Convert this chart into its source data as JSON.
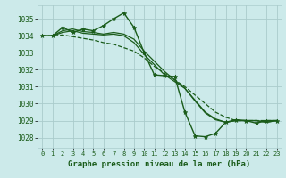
{
  "title": "Graphe pression niveau de la mer (hPa)",
  "background_color": "#cceaea",
  "grid_color": "#aacccc",
  "line_color": "#1a5c1a",
  "marker_color": "#1a5c1a",
  "xlim": [
    -0.5,
    23.5
  ],
  "ylim": [
    1027.4,
    1035.8
  ],
  "yticks": [
    1028,
    1029,
    1030,
    1031,
    1032,
    1033,
    1034,
    1035
  ],
  "xticks": [
    0,
    1,
    2,
    3,
    4,
    5,
    6,
    7,
    8,
    9,
    10,
    11,
    12,
    13,
    14,
    15,
    16,
    17,
    18,
    19,
    20,
    21,
    22,
    23
  ],
  "series": [
    {
      "x": [
        0,
        1,
        2,
        3,
        4,
        5,
        6,
        7,
        8,
        9,
        10,
        11,
        12,
        13,
        14,
        15,
        16,
        17,
        18,
        19,
        20,
        21,
        22,
        23
      ],
      "y": [
        1034.0,
        1034.0,
        1034.5,
        1034.2,
        1034.4,
        1034.3,
        1034.6,
        1035.0,
        1035.35,
        1034.5,
        1033.0,
        1031.7,
        1031.65,
        1031.6,
        1029.5,
        1028.1,
        1028.05,
        1028.25,
        1028.9,
        1029.05,
        1029.0,
        1028.85,
        1029.0,
        1029.0
      ],
      "marker": true,
      "linewidth": 1.0,
      "linestyle": "-"
    },
    {
      "x": [
        0,
        1,
        2,
        3,
        4,
        5,
        6,
        7,
        8,
        9,
        10,
        11,
        12,
        13,
        14,
        15,
        16,
        17,
        18,
        19,
        20,
        21,
        22,
        23
      ],
      "y": [
        1034.0,
        1034.0,
        1034.05,
        1033.95,
        1033.85,
        1033.75,
        1033.6,
        1033.5,
        1033.3,
        1033.1,
        1032.7,
        1032.2,
        1031.8,
        1031.4,
        1031.0,
        1030.5,
        1030.0,
        1029.5,
        1029.2,
        1029.0,
        1029.0,
        1029.0,
        1029.0,
        1029.0
      ],
      "marker": false,
      "linewidth": 0.9,
      "linestyle": "--"
    },
    {
      "x": [
        0,
        1,
        2,
        3,
        4,
        5,
        6,
        7,
        8,
        9,
        10,
        11,
        12,
        13,
        14,
        15,
        16,
        17,
        18,
        19,
        20,
        21,
        22,
        23
      ],
      "y": [
        1034.0,
        1034.0,
        1034.2,
        1034.3,
        1034.15,
        1034.1,
        1034.05,
        1034.1,
        1034.0,
        1033.6,
        1032.9,
        1032.3,
        1031.7,
        1031.3,
        1030.9,
        1030.2,
        1029.5,
        1029.1,
        1028.9,
        1029.0,
        1029.0,
        1029.0,
        1028.9,
        1029.0
      ],
      "marker": false,
      "linewidth": 0.9,
      "linestyle": "-"
    },
    {
      "x": [
        0,
        1,
        2,
        3,
        4,
        5,
        6,
        7,
        8,
        9,
        10,
        11,
        12,
        13,
        14,
        15,
        16,
        17,
        18,
        19,
        20,
        21,
        22,
        23
      ],
      "y": [
        1034.0,
        1034.0,
        1034.3,
        1034.4,
        1034.25,
        1034.2,
        1034.1,
        1034.2,
        1034.1,
        1033.8,
        1033.1,
        1032.5,
        1031.9,
        1031.4,
        1030.9,
        1030.15,
        1029.45,
        1029.05,
        1028.9,
        1029.0,
        1029.0,
        1029.0,
        1028.9,
        1029.0
      ],
      "marker": false,
      "linewidth": 0.9,
      "linestyle": "-"
    }
  ]
}
